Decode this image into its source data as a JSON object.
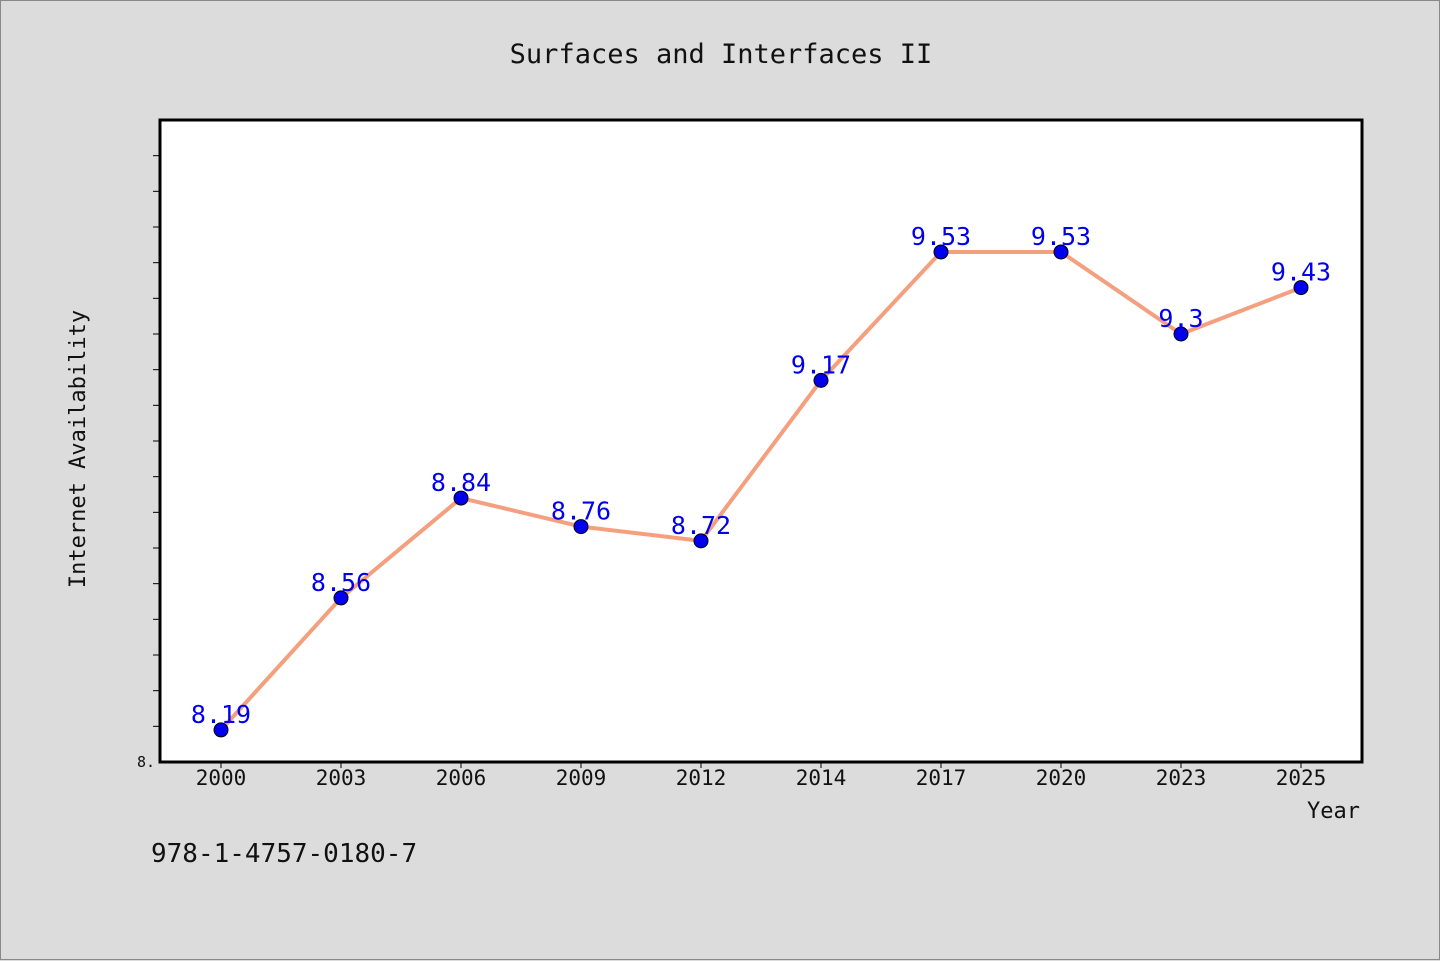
{
  "chart_data": {
    "type": "line",
    "title": "Surfaces and Interfaces II",
    "xlabel": "Year",
    "ylabel": "Internet Availability",
    "categories": [
      "2000",
      "2003",
      "2006",
      "2009",
      "2012",
      "2014",
      "2017",
      "2020",
      "2023",
      "2025"
    ],
    "series": [
      {
        "values": [
          8.19,
          8.56,
          8.84,
          8.76,
          8.72,
          9.17,
          9.53,
          9.53,
          9.3,
          9.43
        ]
      }
    ],
    "data_labels": [
      "8.19",
      "8.56",
      "8.84",
      "8.76",
      "8.72",
      "9.17",
      "9.53",
      "9.53",
      "9.3",
      "9.43"
    ],
    "ylim": [
      8.1,
      9.9
    ],
    "y_tick_labels": [
      "8."
    ],
    "grid": false,
    "legend": "none",
    "colors": {
      "line": "#f4a07e",
      "marker": "#0000ee",
      "label": "#0000ee",
      "plot_bg": "#ffffff",
      "page_bg": "#dcdcdc"
    }
  },
  "footer": {
    "isbn": "978-1-4757-0180-7"
  }
}
